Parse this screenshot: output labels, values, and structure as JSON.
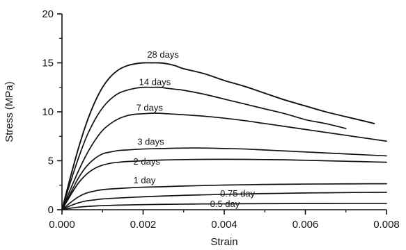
{
  "chart_data": {
    "type": "line",
    "title": "",
    "xlabel": "Strain",
    "ylabel": "Stress (MPa)",
    "xlim": [
      0.0,
      0.008
    ],
    "ylim": [
      0,
      20
    ],
    "xticks": [
      "0.000",
      "0.002",
      "0.004",
      "0.006",
      "0.008"
    ],
    "yticks": [
      "0",
      "5",
      "10",
      "15",
      "20"
    ],
    "grid": false,
    "legend": "none",
    "line_color": "#111111",
    "series": [
      {
        "name": "28 days",
        "x": [
          0.0,
          0.0002,
          0.0004,
          0.0006,
          0.0008,
          0.001,
          0.0012,
          0.0014,
          0.0016,
          0.0018,
          0.002,
          0.0022,
          0.0024,
          0.0026,
          0.0028,
          0.003,
          0.0035,
          0.004,
          0.0045,
          0.005,
          0.0055,
          0.006,
          0.0065,
          0.007,
          0.0075,
          0.0077
        ],
        "values": [
          0,
          3.2,
          6.2,
          8.8,
          10.9,
          12.5,
          13.6,
          14.3,
          14.7,
          14.9,
          15.0,
          15.0,
          15.0,
          14.9,
          14.7,
          14.4,
          13.9,
          13.2,
          12.6,
          11.9,
          11.2,
          10.6,
          10.0,
          9.5,
          9.0,
          8.8
        ]
      },
      {
        "name": "14 days",
        "x": [
          0.0,
          0.0002,
          0.0004,
          0.0006,
          0.0008,
          0.001,
          0.0012,
          0.0014,
          0.0016,
          0.0018,
          0.002,
          0.0022,
          0.0024,
          0.0026,
          0.0028,
          0.003,
          0.0035,
          0.004,
          0.0045,
          0.005,
          0.0055,
          0.006,
          0.0065,
          0.007
        ],
        "values": [
          0,
          2.7,
          5.2,
          7.4,
          9.1,
          10.4,
          11.3,
          11.9,
          12.2,
          12.4,
          12.5,
          12.5,
          12.5,
          12.4,
          12.3,
          12.2,
          11.8,
          11.3,
          10.8,
          10.3,
          9.8,
          9.2,
          8.8,
          8.3
        ]
      },
      {
        "name": "7 days",
        "x": [
          0.0,
          0.0002,
          0.0004,
          0.0006,
          0.0008,
          0.001,
          0.0012,
          0.0014,
          0.0016,
          0.0018,
          0.002,
          0.0022,
          0.0024,
          0.0026,
          0.003,
          0.0035,
          0.004,
          0.0045,
          0.005,
          0.0055,
          0.006,
          0.0065,
          0.007,
          0.0075,
          0.008
        ],
        "values": [
          0,
          2.0,
          3.9,
          5.6,
          7.0,
          8.1,
          8.8,
          9.3,
          9.6,
          9.75,
          9.8,
          9.85,
          9.85,
          9.8,
          9.7,
          9.55,
          9.35,
          9.1,
          8.8,
          8.5,
          8.2,
          7.9,
          7.6,
          7.3,
          7.0
        ]
      },
      {
        "name": "3 days",
        "x": [
          0.0,
          0.0002,
          0.0004,
          0.0006,
          0.0008,
          0.001,
          0.0012,
          0.0014,
          0.0016,
          0.002,
          0.0025,
          0.003,
          0.0035,
          0.004,
          0.0045,
          0.005,
          0.0055,
          0.006,
          0.0065,
          0.007,
          0.0075,
          0.008
        ],
        "values": [
          0,
          1.6,
          3.2,
          4.4,
          5.2,
          5.7,
          5.9,
          6.05,
          6.1,
          6.2,
          6.25,
          6.3,
          6.3,
          6.25,
          6.2,
          6.1,
          6.0,
          5.9,
          5.8,
          5.7,
          5.6,
          5.5
        ]
      },
      {
        "name": "2 days",
        "x": [
          0.0,
          0.0002,
          0.0004,
          0.0006,
          0.0008,
          0.001,
          0.0012,
          0.0014,
          0.0016,
          0.002,
          0.0025,
          0.003,
          0.0035,
          0.004,
          0.0045,
          0.005,
          0.0055,
          0.006,
          0.0065,
          0.007,
          0.0075,
          0.008
        ],
        "values": [
          0,
          1.4,
          2.7,
          3.6,
          4.2,
          4.55,
          4.75,
          4.85,
          4.92,
          5.0,
          5.08,
          5.12,
          5.14,
          5.15,
          5.14,
          5.12,
          5.1,
          5.05,
          5.0,
          4.95,
          4.9,
          4.85
        ]
      },
      {
        "name": "1 day",
        "x": [
          0.0,
          0.0002,
          0.0004,
          0.0006,
          0.0008,
          0.001,
          0.0015,
          0.002,
          0.0025,
          0.003,
          0.0035,
          0.004,
          0.0045,
          0.005,
          0.0055,
          0.006,
          0.0065,
          0.007,
          0.0075,
          0.008
        ],
        "values": [
          0,
          0.7,
          1.3,
          1.7,
          1.9,
          2.05,
          2.2,
          2.3,
          2.35,
          2.42,
          2.47,
          2.52,
          2.55,
          2.58,
          2.6,
          2.62,
          2.63,
          2.64,
          2.65,
          2.65
        ]
      },
      {
        "name": "0.75 day",
        "x": [
          0.0,
          0.0002,
          0.0004,
          0.0006,
          0.0008,
          0.001,
          0.0015,
          0.002,
          0.0025,
          0.003,
          0.0035,
          0.004,
          0.0045,
          0.005,
          0.0055,
          0.006,
          0.0065,
          0.007,
          0.0075,
          0.008
        ],
        "values": [
          0,
          0.4,
          0.7,
          0.9,
          1.0,
          1.1,
          1.22,
          1.32,
          1.4,
          1.47,
          1.52,
          1.57,
          1.61,
          1.65,
          1.68,
          1.71,
          1.73,
          1.75,
          1.77,
          1.78
        ]
      },
      {
        "name": "0.5 day",
        "x": [
          0.0,
          0.0002,
          0.0004,
          0.0006,
          0.0008,
          0.001,
          0.0015,
          0.002,
          0.0025,
          0.003,
          0.0035,
          0.004,
          0.0045,
          0.005,
          0.0055,
          0.006,
          0.0065,
          0.007,
          0.0075,
          0.008
        ],
        "values": [
          0,
          0.15,
          0.26,
          0.33,
          0.38,
          0.42,
          0.48,
          0.52,
          0.55,
          0.57,
          0.59,
          0.6,
          0.61,
          0.62,
          0.63,
          0.64,
          0.64,
          0.65,
          0.65,
          0.65
        ]
      }
    ],
    "annotations": [
      {
        "text": "28 days",
        "x": 0.0021,
        "y": 15.9
      },
      {
        "text": "14 days",
        "x": 0.0019,
        "y": 13.1
      },
      {
        "text": "7 days",
        "x": 0.00183,
        "y": 10.45
      },
      {
        "text": "3 days",
        "x": 0.00186,
        "y": 7.0
      },
      {
        "text": "2 days",
        "x": 0.00176,
        "y": 4.95
      },
      {
        "text": "1 day",
        "x": 0.00176,
        "y": 3.05
      },
      {
        "text": "0.75 day",
        "x": 0.0039,
        "y": 1.7
      },
      {
        "text": "0.5 day",
        "x": 0.00365,
        "y": 0.65
      }
    ]
  }
}
